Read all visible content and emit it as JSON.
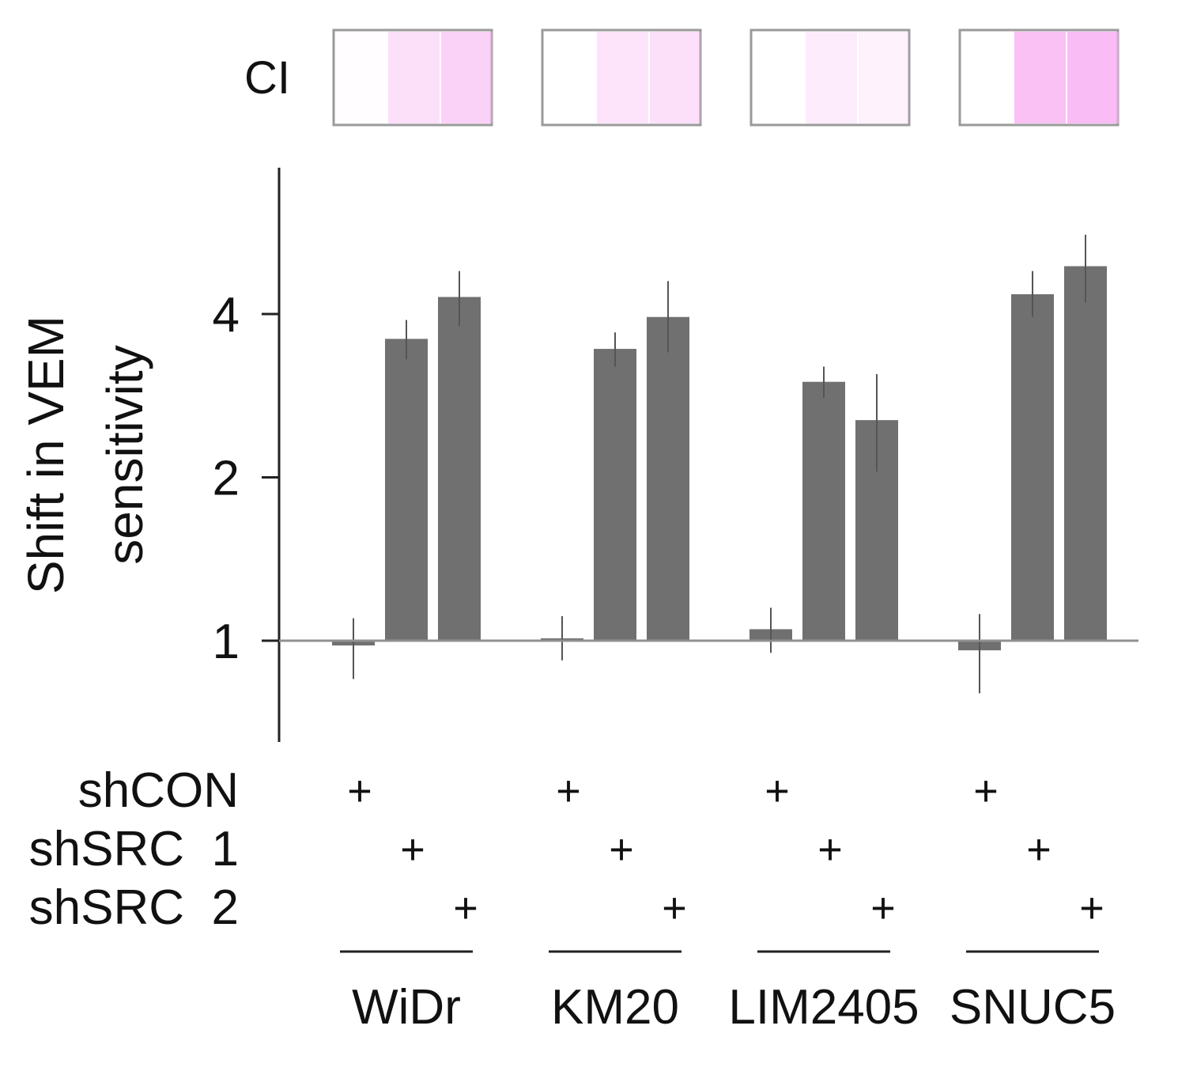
{
  "chart_data": {
    "type": "bar",
    "ylabel_line1": "Shift in VEM",
    "ylabel_line2": "sensitivity",
    "yscale": "log2",
    "ylim": [
      0.7,
      5.2
    ],
    "yticks": [
      1,
      2,
      4
    ],
    "ytick_labels": [
      "1",
      "2",
      "4"
    ],
    "baseline": 1,
    "bar_color": "#707070",
    "ci_label": "CI",
    "ci_color": "#f7a6f0",
    "condition_labels": [
      "shCON",
      "shSRC  1",
      "shSRC  2"
    ],
    "condition_marker": "+",
    "groups": [
      {
        "name": "WiDr",
        "values": [
          0.98,
          3.6,
          4.3
        ],
        "errors": [
          [
            0.85,
            1.1
          ],
          [
            3.3,
            3.9
          ],
          [
            3.8,
            4.8
          ]
        ],
        "ci": [
          0.02,
          0.35,
          0.5
        ]
      },
      {
        "name": "KM20",
        "values": [
          1.01,
          3.45,
          3.95
        ],
        "errors": [
          [
            0.92,
            1.11
          ],
          [
            3.2,
            3.7
          ],
          [
            3.4,
            4.6
          ]
        ],
        "ci": [
          0.0,
          0.3,
          0.35
        ]
      },
      {
        "name": "LIM2405",
        "values": [
          1.05,
          3.0,
          2.55
        ],
        "errors": [
          [
            0.95,
            1.15
          ],
          [
            2.8,
            3.2
          ],
          [
            2.05,
            3.1
          ]
        ],
        "ci": [
          0.0,
          0.2,
          0.15
        ]
      },
      {
        "name": "SNUC5",
        "values": [
          0.96,
          4.35,
          4.9
        ],
        "errors": [
          [
            0.8,
            1.12
          ],
          [
            3.95,
            4.8
          ],
          [
            4.2,
            5.6
          ]
        ],
        "ci": [
          0.0,
          0.7,
          0.75
        ]
      }
    ]
  }
}
